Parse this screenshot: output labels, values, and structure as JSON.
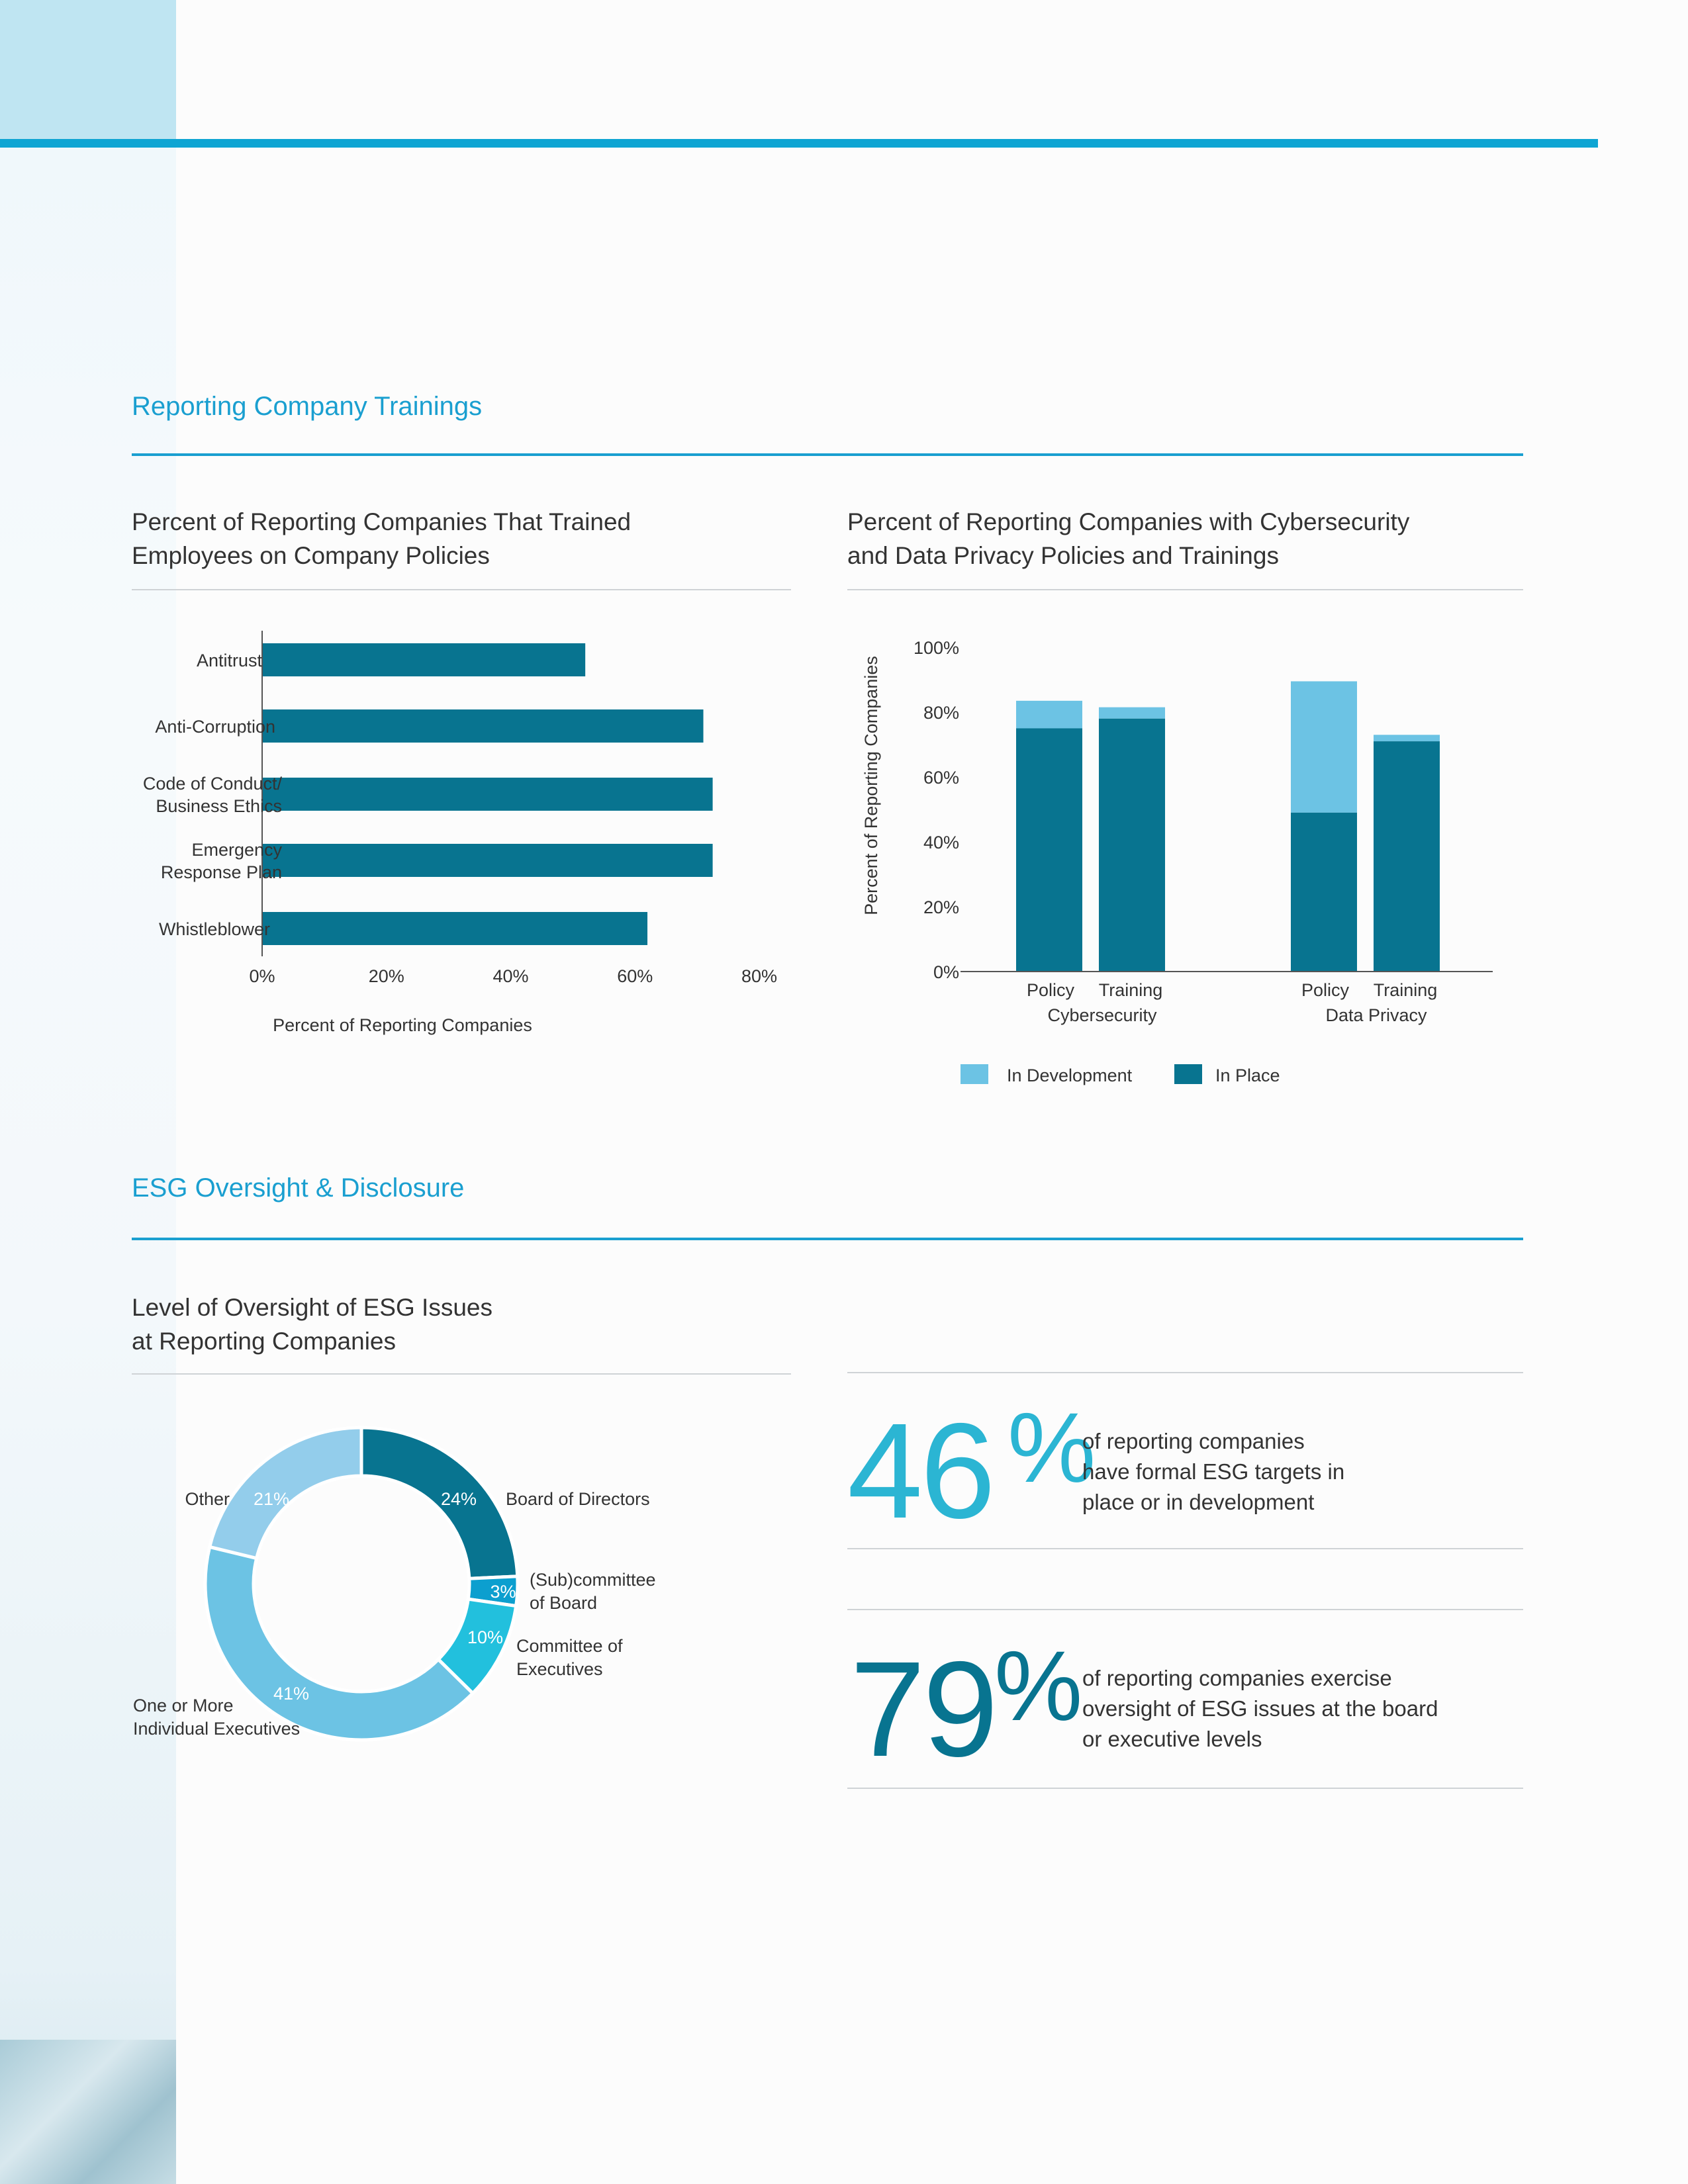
{
  "sections": {
    "trainings": "Reporting Company Trainings",
    "esg": "ESG Oversight & Disclosure"
  },
  "chart_titles": {
    "policies": [
      "Percent of Reporting Companies That Trained",
      "Employees on Company Policies"
    ],
    "cyber": [
      "Percent of Reporting Companies with Cybersecurity",
      "and Data Privacy Policies and Trainings"
    ],
    "oversight": [
      "Level of Oversight of ESG Issues",
      "at Reporting Companies"
    ]
  },
  "colors": {
    "accent": "#1a9fd0",
    "in_place": "#087490",
    "in_development": "#6cc3e4",
    "stat_46": "#2bb5d3",
    "stat_79": "#087490"
  },
  "chart_data": [
    {
      "type": "bar",
      "orientation": "horizontal",
      "categories": [
        [
          "Antitrust"
        ],
        [
          "Anti-Corruption"
        ],
        [
          "Code of Conduct/",
          "Business Ethics"
        ],
        [
          "Emergency",
          "Response Plan"
        ],
        [
          "Whistleblower"
        ]
      ],
      "values": [
        52,
        71,
        72.5,
        72.5,
        62
      ],
      "xlabel": "Percent of Reporting Companies",
      "xlim": [
        0,
        80
      ],
      "xticks": [
        "0%",
        "20%",
        "40%",
        "60%",
        "80%"
      ],
      "grid": false
    },
    {
      "type": "bar",
      "stacked": true,
      "categories": [
        "Policy",
        "Training",
        "Policy",
        "Training"
      ],
      "groups": [
        "Cybersecurity",
        "Data Privacy"
      ],
      "series": [
        {
          "name": "In Place",
          "values": [
            75,
            78,
            49,
            71
          ],
          "color": "#087490"
        },
        {
          "name": "In Development",
          "values": [
            8.5,
            3.5,
            40.5,
            2
          ],
          "color": "#6cc3e4"
        }
      ],
      "ylabel": "Percent of Reporting Companies",
      "ylim": [
        0,
        100
      ],
      "yticks": [
        "0%",
        "20%",
        "40%",
        "60%",
        "80%",
        "100%"
      ],
      "legend": "bottom",
      "grid": false
    },
    {
      "type": "pie",
      "donut": true,
      "slices": [
        {
          "label": [
            "Board of Directors"
          ],
          "value": 24,
          "value_label": "24%",
          "color": "#087490"
        },
        {
          "label": [
            "(Sub)committee",
            "of Board"
          ],
          "value": 3,
          "value_label": "3%",
          "color": "#0c9fcf"
        },
        {
          "label": [
            "Committee of",
            "Executives"
          ],
          "value": 10,
          "value_label": "10%",
          "color": "#22c0dd"
        },
        {
          "label": [
            "One or More",
            "Individual Executives"
          ],
          "value": 41,
          "value_label": "41%",
          "color": "#6cc3e4"
        },
        {
          "label": [
            "Other"
          ],
          "value": 21,
          "value_label": "21%",
          "color": "#93cdeb"
        }
      ]
    }
  ],
  "stats": [
    {
      "number": "46",
      "symbol": "%",
      "text": [
        "of reporting companies",
        "have formal ESG targets in",
        "place or in development"
      ]
    },
    {
      "number": "79",
      "symbol": "%",
      "text": [
        "of reporting companies exercise",
        "oversight of ESG issues at the board",
        "or executive levels"
      ]
    }
  ]
}
